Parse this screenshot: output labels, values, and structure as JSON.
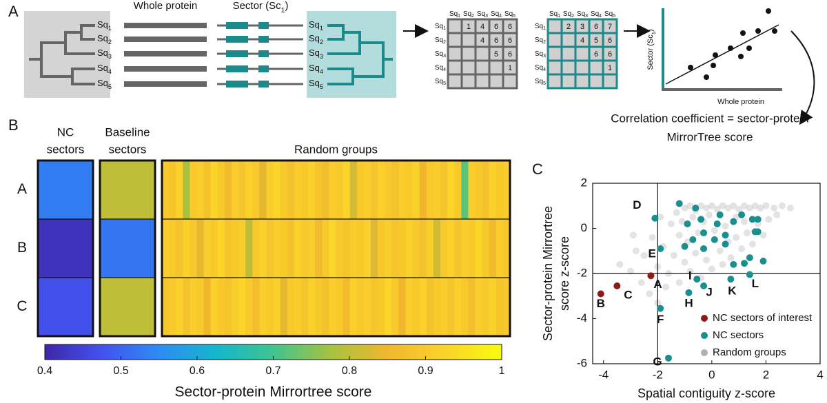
{
  "diagram": {
    "label": "A",
    "whole_protein": "Whole protein",
    "sector": [
      "Sector (Sc",
      "1",
      ")"
    ],
    "sequences": [
      [
        "Sq",
        "1"
      ],
      [
        "Sq",
        "2"
      ],
      [
        "Sq",
        "3"
      ],
      [
        "Sq",
        "4"
      ],
      [
        "Sq",
        "5"
      ]
    ],
    "matrices": [
      {
        "cells": [
          [
            null,
            1,
            4,
            6,
            6
          ],
          [
            null,
            null,
            4,
            6,
            6
          ],
          [
            null,
            null,
            null,
            5,
            6
          ],
          [
            null,
            null,
            null,
            null,
            1
          ],
          [
            null,
            null,
            null,
            null,
            null
          ]
        ]
      },
      {
        "cells": [
          [
            null,
            2,
            3,
            6,
            7
          ],
          [
            null,
            null,
            4,
            5,
            6
          ],
          [
            null,
            null,
            null,
            6,
            6
          ],
          [
            null,
            null,
            null,
            null,
            1
          ],
          [
            null,
            null,
            null,
            null,
            null
          ]
        ]
      }
    ],
    "plot_y_label": [
      "Sector (Sc",
      "1",
      ")"
    ],
    "plot_x_label": "Whole protein",
    "result": [
      "Correlation coefficient = sector-protein",
      "MirrorTree score"
    ]
  },
  "chart_data": [
    {
      "type": "heatmap",
      "label": "B",
      "rows": [
        "A",
        "B",
        "C"
      ],
      "groups": [
        {
          "name": [
            "NC",
            "sectors"
          ],
          "values": [
            [
              0.53
            ],
            [
              0.42
            ],
            [
              0.47
            ]
          ]
        },
        {
          "name": [
            "Baseline",
            "sectors"
          ],
          "values": [
            [
              0.8
            ],
            [
              0.52
            ],
            [
              0.8
            ]
          ]
        },
        {
          "name": [
            "Random groups"
          ],
          "values": [
            [
              0.9,
              0.89,
              0.92,
              0.78,
              0.9,
              0.91,
              0.88,
              0.93,
              0.9,
              0.86,
              0.91,
              0.89,
              0.92,
              0.9,
              0.84,
              0.91,
              0.93,
              0.9,
              0.88,
              0.91,
              0.9,
              0.92,
              0.89,
              0.87,
              0.91,
              0.9,
              0.93,
              0.82,
              0.9,
              0.91,
              0.89,
              0.92,
              0.9,
              0.88,
              0.91,
              0.9,
              0.92,
              0.85,
              0.9,
              0.91,
              0.89,
              0.93,
              0.9,
              0.72,
              0.91,
              0.9,
              0.88,
              0.92,
              0.9,
              0.91
            ],
            [
              0.91,
              0.9,
              0.88,
              0.92,
              0.9,
              0.84,
              0.91,
              0.9,
              0.93,
              0.89,
              0.9,
              0.91,
              0.8,
              0.9,
              0.92,
              0.89,
              0.91,
              0.9,
              0.88,
              0.92,
              0.9,
              0.91,
              0.86,
              0.9,
              0.93,
              0.9,
              0.89,
              0.91,
              0.9,
              0.92,
              0.83,
              0.9,
              0.91,
              0.89,
              0.9,
              0.92,
              0.9,
              0.88,
              0.91,
              0.82,
              0.9,
              0.92,
              0.89,
              0.91,
              0.9,
              0.93,
              0.9,
              0.86,
              0.91,
              0.9
            ],
            [
              0.89,
              0.9,
              0.92,
              0.88,
              0.91,
              0.9,
              0.85,
              0.92,
              0.9,
              0.89,
              0.91,
              0.93,
              0.9,
              0.87,
              0.91,
              0.9,
              0.92,
              0.84,
              0.9,
              0.91,
              0.89,
              0.92,
              0.9,
              0.88,
              0.91,
              0.9,
              0.86,
              0.92,
              0.9,
              0.91,
              0.89,
              0.9,
              0.93,
              0.9,
              0.85,
              0.91,
              0.9,
              0.92,
              0.88,
              0.9,
              0.91,
              0.89,
              0.92,
              0.9,
              0.87,
              0.91,
              0.9,
              0.92,
              0.89,
              0.9
            ]
          ]
        }
      ],
      "clim": [
        0.4,
        1
      ],
      "colorbar_ticks": [
        0.4,
        0.5,
        0.6,
        0.7,
        0.8,
        0.9,
        1
      ],
      "colorbar_label": "Sector-protein Mirrortree score",
      "colormap": [
        "#3e26a8",
        "#4352ee",
        "#2d8cf4",
        "#14b6cd",
        "#3fc58f",
        "#a6c23f",
        "#f0b72e",
        "#fbd22a",
        "#f9fb0e"
      ]
    },
    {
      "type": "scatter",
      "label": "C",
      "xlabel": "Spatial contiguity z-score",
      "ylabel": [
        "Sector-protein Mirrortree",
        "score z-score"
      ],
      "xlim": [
        -4.4,
        4
      ],
      "ylim": [
        -6,
        2
      ],
      "xticks": [
        -4,
        -2,
        0,
        2,
        4
      ],
      "yticks": [
        -6,
        -4,
        -2,
        0,
        2
      ],
      "reference_lines": {
        "x": -2,
        "y": -2
      },
      "legend": "lower right",
      "series": [
        {
          "name": "NC sectors of interest",
          "color": "#8b1a1a",
          "x": [
            -2.25,
            -4.1,
            -3.5
          ],
          "values": [
            -2.1,
            -2.9,
            -2.55
          ],
          "point_labels": [
            "A",
            "B",
            "C"
          ]
        },
        {
          "name": "NC sectors",
          "color": "#1a8f8f",
          "x": [
            -2.1,
            -1.9,
            -1.9,
            -1.6,
            -0.85,
            -0.55,
            -0.3,
            0.7,
            1.4,
            -1.2,
            -0.6,
            -0.4,
            0.3,
            0.8,
            1.1,
            1.5,
            1.7,
            1.6,
            1.7,
            0.5,
            -0.9,
            -0.7,
            -0.3,
            0.1,
            -1.0,
            1.4,
            1.2,
            1.9,
            0.8,
            0.5,
            -0.3,
            0.2
          ],
          "values": [
            0.45,
            -0.9,
            -3.55,
            -5.75,
            -2.85,
            -2.25,
            -2.55,
            -2.25,
            -2.05,
            1.1,
            0.9,
            0.4,
            0.6,
            0.3,
            0.6,
            0.4,
            0.4,
            -0.15,
            -0.15,
            -0.3,
            0.2,
            -0.5,
            -0.9,
            -0.5,
            -0.8,
            -1.3,
            -1.55,
            -1.45,
            -1.6,
            -0.7,
            -0.2,
            0.2
          ],
          "point_labels": [
            "D",
            "E",
            "F",
            "G",
            "H",
            "I",
            "J",
            "K",
            "L",
            null,
            null,
            null,
            null,
            null,
            null,
            null,
            null,
            null,
            null,
            null,
            null,
            null,
            null,
            null,
            null,
            null,
            null,
            null,
            null,
            null,
            null,
            null
          ]
        },
        {
          "name": "Random groups",
          "color": "#b0b0b0",
          "x": [
            -1,
            -0.8,
            -0.6,
            -0.4,
            -0.2,
            0,
            0.2,
            0.4,
            0.6,
            0.8,
            1.0,
            1.2,
            1.4,
            1.6,
            1.8,
            2.0,
            2.3,
            2.6,
            2.9,
            -1.3,
            -1.5,
            -1.2,
            -0.9,
            -0.5,
            -0.3,
            0.1,
            0.5,
            0.9,
            1.3,
            1.7,
            2.1,
            -1.8,
            -1.4,
            -1.0,
            -0.6,
            -0.2,
            0.3,
            0.7,
            1.1,
            1.5,
            -2.2,
            -2.5,
            -2.0,
            -1.6,
            -1.2,
            -0.8,
            -0.4,
            0.0,
            0.4,
            -2.8,
            -3.0,
            -2.6,
            -2.3,
            -2.0,
            -1.7,
            -3.4,
            -2.9,
            -1.9,
            0.9,
            1.9,
            2.4,
            -0.1,
            -1.1,
            0.6,
            -0.7,
            1.2
          ],
          "values": [
            0.9,
            1.0,
            0.8,
            1.0,
            0.9,
            1.0,
            0.85,
            1.0,
            0.9,
            1.0,
            0.85,
            1.0,
            0.9,
            1.0,
            0.9,
            1.0,
            0.9,
            1.0,
            0.9,
            0.7,
            0.2,
            -0.3,
            -0.6,
            -0.2,
            0.3,
            -0.1,
            0.1,
            -0.4,
            -0.2,
            0.2,
            0.4,
            -0.8,
            -1.2,
            -1.5,
            -1.1,
            -1.4,
            -1.0,
            -1.3,
            -0.9,
            -0.7,
            -0.4,
            -1.2,
            -1.7,
            -2.0,
            -2.4,
            -1.9,
            -2.2,
            -1.8,
            -1.6,
            -1.0,
            -1.9,
            -2.4,
            -2.9,
            -3.3,
            -2.6,
            -1.6,
            -0.3,
            0.5,
            0.5,
            -0.3,
            0.6,
            0.6,
            0.3,
            -0.6,
            0.5,
            0.3
          ]
        }
      ]
    }
  ]
}
